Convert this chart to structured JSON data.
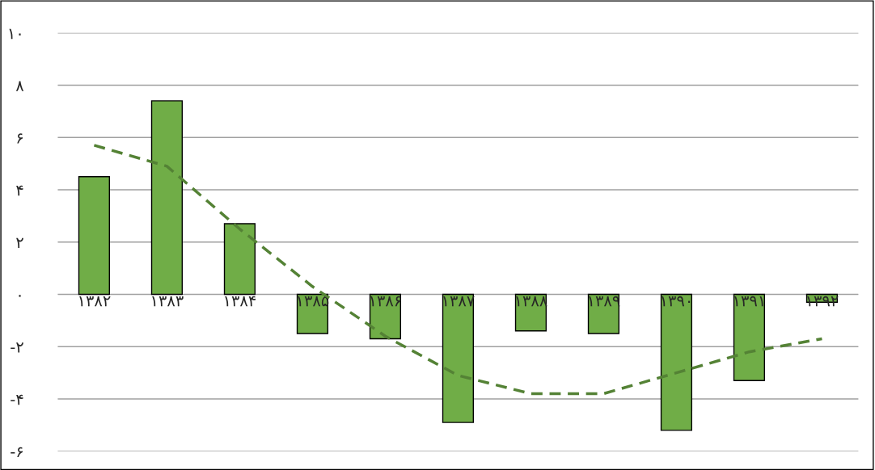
{
  "chart_data": {
    "type": "bar",
    "categories": [
      "۱۳۸۲",
      "۱۳۸۳",
      "۱۳۸۴",
      "۱۳۸۵",
      "۱۳۸۶",
      "۱۳۸۷",
      "۱۳۸۸",
      "۱۳۸۹",
      "۱۳۹۰",
      "۱۳۹۱",
      "۱۳۹۲"
    ],
    "series": [
      {
        "color": "#70ad47",
        "values": [
          4.5,
          7.4,
          2.7,
          -1.5,
          -1.7,
          -4.9,
          -1.4,
          -1.5,
          -5.2,
          -3.3,
          -0.3
        ]
      },
      {
        "type": "line",
        "color": "#548235",
        "line_style": "dashed",
        "values": [
          5.7,
          4.9,
          2.5,
          0.3,
          -1.6,
          -3.1,
          -3.8,
          -3.8,
          -3.0,
          -2.2,
          -1.7
        ]
      }
    ],
    "ylim": [
      -6,
      10
    ],
    "yticks": [
      {
        "value": -6,
        "label": "-۶"
      },
      {
        "value": -4,
        "label": "-۴"
      },
      {
        "value": -2,
        "label": "-۲"
      },
      {
        "value": 0,
        "label": "۰"
      },
      {
        "value": 2,
        "label": "۲"
      },
      {
        "value": 4,
        "label": "۴"
      },
      {
        "value": 6,
        "label": "۶"
      },
      {
        "value": 8,
        "label": "۸"
      },
      {
        "value": 10,
        "label": "۱۰"
      }
    ],
    "grid": "y",
    "legend": false
  }
}
